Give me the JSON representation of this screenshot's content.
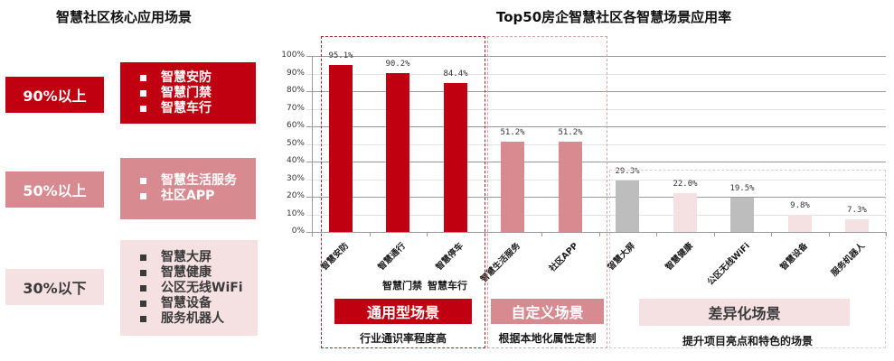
{
  "left_panel": {
    "title": "智慧社区核心应用场景",
    "tiers": [
      {
        "label": "90%以上",
        "items": [
          "智慧安防",
          "智慧门禁",
          "智慧车行"
        ],
        "bg": "#C00010",
        "fg": "#FFFFFF"
      },
      {
        "label": "50%以上",
        "items": [
          "智慧生活服务",
          "社区APP"
        ],
        "bg": "#D78A8F",
        "fg": "#FFFFFF"
      },
      {
        "label": "30%以下",
        "items": [
          "智慧大屏",
          "智慧健康",
          "公区无线WiFi",
          "智慧设备",
          "服务机器人"
        ],
        "bg": "#F5E0E2",
        "fg": "#3A3A3A"
      }
    ]
  },
  "chart_data": {
    "type": "bar",
    "title": "Top50房企智慧社区各智慧场景应用率",
    "categories": [
      "智慧安防",
      "智慧通行",
      "智慧停车",
      "智慧生活服务",
      "社区APP",
      "智慧大屏",
      "智慧健康",
      "公区无线WiFi",
      "智慧设备",
      "服务机器人"
    ],
    "values": [
      95.1,
      90.2,
      84.4,
      51.2,
      51.2,
      29.3,
      22.0,
      19.5,
      9.8,
      7.3
    ],
    "value_labels": [
      "95.1%",
      "90.2%",
      "84.4%",
      "51.2%",
      "51.2%",
      "29.3%",
      "22.0%",
      "19.5%",
      "9.8%",
      "7.3%"
    ],
    "bar_colors": [
      "#C00010",
      "#C00010",
      "#C00010",
      "#D78A8F",
      "#D78A8F",
      "#BDBDBD",
      "#F5E0E2",
      "#BDBDBD",
      "#F5E0E2",
      "#F5E0E2"
    ],
    "yticks": [
      "0%",
      "10%",
      "20%",
      "30%",
      "40%",
      "50%",
      "60%",
      "70%",
      "80%",
      "90%",
      "100%"
    ],
    "ylim": [
      0,
      100
    ],
    "xlabel": "",
    "ylabel": "",
    "grid": true,
    "annotations": [
      "智慧门禁",
      "智慧车行"
    ]
  },
  "groups": [
    {
      "name": "通用型场景",
      "desc": "行业通识率程度高",
      "bg": "#C00010",
      "fg": "#FFFFFF",
      "border": "#A8202A"
    },
    {
      "name": "自定义场景",
      "desc": "根据本地化属性定制",
      "bg": "#D78A8F",
      "fg": "#FFFFFF",
      "border": "#D9A0A4"
    },
    {
      "name": "差异化场景",
      "desc": "提升项目亮点和特色的场景",
      "bg": "#F5E0E2",
      "fg": "#3A3A3A",
      "border": "#E6C8CB"
    }
  ]
}
